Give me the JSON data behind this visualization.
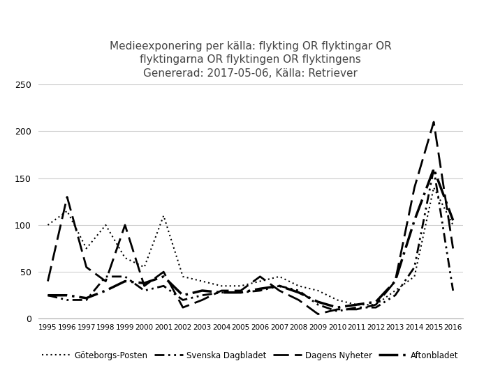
{
  "title": "Medieexponering per källa: flykting OR flyktingar OR\nflyktingarna OR flyktingen OR flyktingens\nGenererad: 2017-05-06, Källa: Retriever",
  "years": [
    1995,
    1996,
    1997,
    1998,
    1999,
    2000,
    2001,
    2002,
    2003,
    2004,
    2005,
    2006,
    2007,
    2008,
    2009,
    2010,
    2011,
    2012,
    2013,
    2014,
    2015,
    2016
  ],
  "goteborgs_posten": [
    100,
    115,
    75,
    100,
    65,
    55,
    110,
    45,
    40,
    35,
    35,
    40,
    45,
    35,
    30,
    20,
    15,
    15,
    30,
    45,
    140,
    100
  ],
  "svenska_dagbladet": [
    25,
    20,
    20,
    45,
    45,
    30,
    35,
    20,
    25,
    28,
    28,
    30,
    35,
    30,
    15,
    8,
    12,
    12,
    25,
    55,
    160,
    30
  ],
  "dagens_nyheter": [
    40,
    130,
    55,
    40,
    100,
    35,
    50,
    12,
    20,
    30,
    30,
    45,
    30,
    20,
    5,
    10,
    10,
    15,
    40,
    140,
    210,
    75
  ],
  "aftonbladet": [
    25,
    25,
    22,
    30,
    40,
    38,
    45,
    25,
    30,
    28,
    28,
    32,
    35,
    28,
    18,
    12,
    15,
    18,
    40,
    105,
    160,
    105
  ],
  "ylim": [
    0,
    250
  ],
  "yticks": [
    0,
    50,
    100,
    150,
    200,
    250
  ],
  "background_color": "#ffffff",
  "grid_color": "#d0d0d0",
  "line_color": "#000000",
  "title_fontsize": 11,
  "legend_labels": [
    "Göteborgs-Posten",
    "Svenska Dagbladet",
    "Dagens Nyheter",
    "Aftonbladet"
  ]
}
